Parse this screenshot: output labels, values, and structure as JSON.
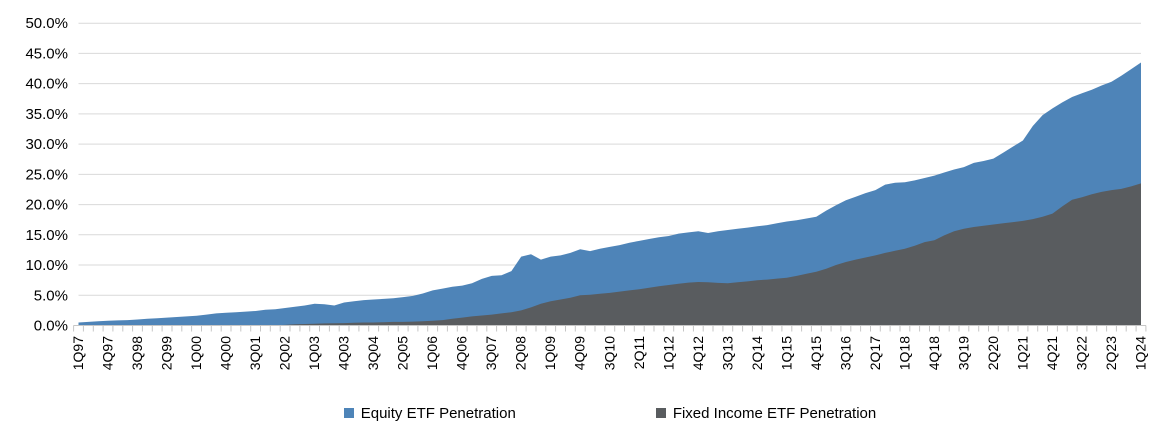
{
  "chart_data": {
    "type": "area",
    "mode": "overlay",
    "title": "",
    "xlabel": "",
    "ylabel": "",
    "ylim": [
      0,
      50
    ],
    "y_tick_labels": [
      "0.0%",
      "5.0%",
      "10.0%",
      "15.0%",
      "20.0%",
      "25.0%",
      "30.0%",
      "35.0%",
      "40.0%",
      "45.0%",
      "50.0%"
    ],
    "x_label_step": 3,
    "grid": "horizontal",
    "legend_position": "bottom",
    "categories": [
      "1Q97",
      "2Q97",
      "3Q97",
      "4Q97",
      "1Q98",
      "2Q98",
      "3Q98",
      "4Q98",
      "1Q99",
      "2Q99",
      "3Q99",
      "4Q99",
      "1Q00",
      "2Q00",
      "3Q00",
      "4Q00",
      "1Q01",
      "2Q01",
      "3Q01",
      "4Q01",
      "1Q02",
      "2Q02",
      "3Q02",
      "4Q02",
      "1Q03",
      "2Q03",
      "3Q03",
      "4Q03",
      "1Q04",
      "2Q04",
      "3Q04",
      "4Q04",
      "1Q05",
      "2Q05",
      "3Q05",
      "4Q05",
      "1Q06",
      "2Q06",
      "3Q06",
      "4Q06",
      "1Q07",
      "2Q07",
      "3Q07",
      "4Q07",
      "1Q08",
      "2Q08",
      "3Q08",
      "4Q08",
      "1Q09",
      "2Q09",
      "3Q09",
      "4Q09",
      "1Q10",
      "2Q10",
      "3Q10",
      "4Q10",
      "1Q11",
      "2Q11",
      "3Q11",
      "4Q11",
      "1Q12",
      "2Q12",
      "3Q12",
      "4Q12",
      "1Q13",
      "2Q13",
      "3Q13",
      "4Q13",
      "1Q14",
      "2Q14",
      "3Q14",
      "4Q14",
      "1Q15",
      "2Q15",
      "3Q15",
      "4Q15",
      "1Q16",
      "2Q16",
      "3Q16",
      "4Q16",
      "1Q17",
      "2Q17",
      "3Q17",
      "4Q17",
      "1Q18",
      "2Q18",
      "3Q18",
      "4Q18",
      "1Q19",
      "2Q19",
      "3Q19",
      "4Q19",
      "1Q20",
      "2Q20",
      "3Q20",
      "4Q20",
      "1Q21",
      "2Q21",
      "3Q21",
      "4Q21",
      "1Q22",
      "2Q22",
      "3Q22",
      "4Q22",
      "1Q23",
      "2Q23",
      "3Q23",
      "4Q23",
      "1Q24"
    ],
    "series": [
      {
        "name": "Equity ETF Penetration",
        "color": "#4E84B8",
        "values": [
          0.5,
          0.6,
          0.7,
          0.8,
          0.85,
          0.9,
          1.0,
          1.1,
          1.2,
          1.3,
          1.4,
          1.5,
          1.6,
          1.8,
          2.0,
          2.1,
          2.2,
          2.3,
          2.4,
          2.6,
          2.7,
          2.9,
          3.1,
          3.3,
          3.6,
          3.5,
          3.3,
          3.8,
          4.0,
          4.2,
          4.3,
          4.4,
          4.5,
          4.7,
          4.9,
          5.3,
          5.8,
          6.1,
          6.4,
          6.6,
          7.0,
          7.7,
          8.2,
          8.3,
          9.0,
          11.4,
          11.8,
          10.9,
          11.4,
          11.6,
          12.0,
          12.6,
          12.3,
          12.7,
          13.0,
          13.3,
          13.7,
          14.0,
          14.3,
          14.6,
          14.8,
          15.2,
          15.4,
          15.6,
          15.3,
          15.6,
          15.8,
          16.0,
          16.2,
          16.4,
          16.6,
          16.9,
          17.2,
          17.4,
          17.7,
          18.0,
          19.0,
          19.9,
          20.7,
          21.3,
          21.9,
          22.4,
          23.3,
          23.6,
          23.7,
          24.0,
          24.4,
          24.8,
          25.3,
          25.8,
          26.2,
          26.9,
          27.2,
          27.6,
          28.6,
          29.6,
          30.6,
          33.0,
          34.8,
          35.9,
          36.9,
          37.8,
          38.4,
          39.0,
          39.7,
          40.3,
          41.3,
          42.4,
          43.5
        ]
      },
      {
        "name": "Fixed Income ETF Penetration",
        "color": "#595C5F",
        "values": [
          0,
          0,
          0,
          0,
          0,
          0,
          0,
          0,
          0,
          0,
          0,
          0,
          0,
          0,
          0,
          0,
          0,
          0,
          0,
          0,
          0.05,
          0.1,
          0.2,
          0.25,
          0.3,
          0.35,
          0.38,
          0.4,
          0.45,
          0.5,
          0.5,
          0.55,
          0.6,
          0.6,
          0.65,
          0.7,
          0.8,
          0.9,
          1.1,
          1.3,
          1.5,
          1.65,
          1.8,
          2.0,
          2.2,
          2.5,
          3.0,
          3.6,
          4.0,
          4.3,
          4.6,
          5.0,
          5.1,
          5.25,
          5.4,
          5.6,
          5.8,
          6.0,
          6.25,
          6.5,
          6.7,
          6.9,
          7.1,
          7.2,
          7.15,
          7.05,
          7.0,
          7.15,
          7.3,
          7.5,
          7.6,
          7.75,
          7.9,
          8.2,
          8.55,
          8.9,
          9.4,
          10.0,
          10.5,
          10.9,
          11.25,
          11.6,
          12.0,
          12.35,
          12.7,
          13.2,
          13.8,
          14.1,
          14.9,
          15.6,
          16.0,
          16.3,
          16.5,
          16.7,
          16.9,
          17.1,
          17.3,
          17.6,
          18.0,
          18.5,
          19.7,
          20.8,
          21.2,
          21.7,
          22.1,
          22.4,
          22.6,
          23.0,
          23.5
        ]
      }
    ]
  },
  "colors": {
    "gridline": "#D9D9D9",
    "axis": "#C6C6C6",
    "text": "#000000",
    "background": "#FFFFFF"
  }
}
